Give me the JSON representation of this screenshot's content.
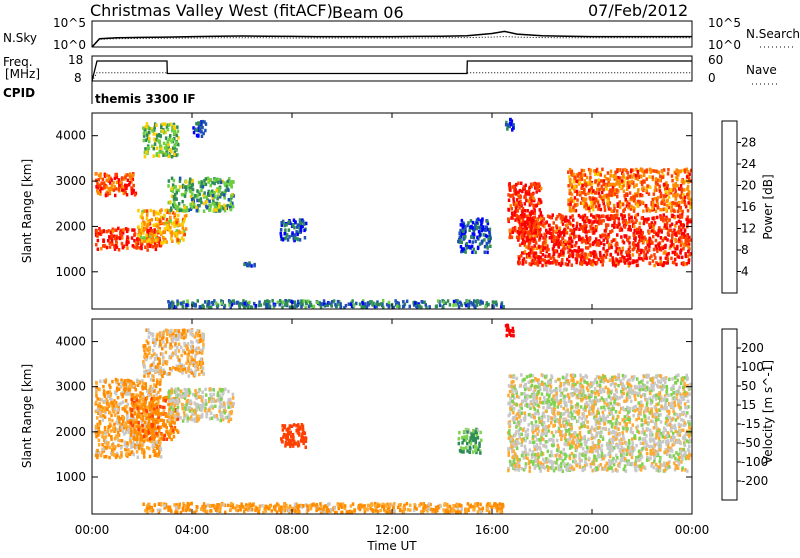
{
  "header": {
    "radar": "Christmas Valley West (fitACF)",
    "beam": "Beam 06",
    "date": "07/Feb/2012"
  },
  "nsky_panel": {
    "left_label": "N.Sky",
    "right_label": "N.Search",
    "left_ticks": [
      "10^5",
      "10^0"
    ],
    "right_ticks": [
      "10^5",
      "10^0"
    ]
  },
  "freq_panel": {
    "left_label_1": "Freq.",
    "left_label_2": "[MHz]",
    "cpid_label": "CPID",
    "right_label": "Nave",
    "left_ticks": [
      "18",
      "8"
    ],
    "right_ticks": [
      "60",
      "0"
    ],
    "cpid_text": "themis 3300 IF"
  },
  "x_axis": {
    "label": "Time UT",
    "ticks": [
      "00:00",
      "04:00",
      "08:00",
      "12:00",
      "16:00",
      "20:00",
      "00:00"
    ]
  },
  "chart_data": [
    {
      "type": "line",
      "name": "nsky-nsearch",
      "x": [
        0,
        0.3,
        1,
        2,
        3,
        4,
        5,
        6,
        7,
        8,
        9,
        10,
        11,
        12,
        13,
        14,
        15,
        16,
        16.5,
        17,
        18,
        19,
        20,
        21,
        22,
        23,
        24
      ],
      "series": [
        {
          "name": "N.Sky",
          "style": "solid",
          "values": [
            1,
            40,
            60,
            70,
            80,
            100,
            120,
            130,
            120,
            110,
            100,
            100,
            100,
            100,
            110,
            120,
            150,
            400,
            1000,
            300,
            150,
            120,
            100,
            100,
            100,
            100,
            100
          ]
        },
        {
          "name": "N.Search",
          "style": "dotted",
          "values": [
            1,
            30,
            40,
            45,
            50,
            55,
            60,
            60,
            60,
            55,
            55,
            55,
            55,
            55,
            55,
            60,
            65,
            80,
            100,
            80,
            65,
            60,
            60,
            60,
            60,
            60,
            60
          ]
        }
      ],
      "ylim": [
        1,
        100000
      ],
      "log": true
    },
    {
      "type": "line",
      "name": "freq-nave",
      "x": [
        0,
        0.2,
        3,
        3.01,
        15,
        15.01,
        24
      ],
      "series": [
        {
          "name": "Freq.",
          "style": "solid",
          "units": "MHz",
          "values": [
            8,
            16,
            16,
            11,
            11,
            16,
            16
          ]
        },
        {
          "name": "Nave",
          "style": "dotted",
          "values": [
            0,
            20,
            20,
            18,
            18,
            20,
            20
          ]
        }
      ],
      "ylim": [
        8,
        18
      ],
      "y2lim": [
        0,
        60
      ]
    },
    {
      "type": "heatmap",
      "name": "power",
      "ylabel": "Slant Range [km]",
      "yticks": [
        "1000",
        "2000",
        "3000",
        "4000"
      ],
      "ylim": [
        180,
        4500
      ],
      "xlim": [
        0,
        24
      ],
      "colorbar_label": "Power [dB]",
      "colorbar_ticks": [
        "28",
        "24",
        "20",
        "16",
        "12",
        "8",
        "4"
      ],
      "colorbar_colors": [
        "#0000ff",
        "#1e50b4",
        "#2e8b57",
        "#6ccf3f",
        "#ffcc00",
        "#ff8c00",
        "#ff4000",
        "#ff0000"
      ],
      "regions": [
        {
          "t": [
            0.1,
            2.8
          ],
          "r": [
            1450,
            2000
          ],
          "level": 28
        },
        {
          "t": [
            0.1,
            1.8
          ],
          "r": [
            2650,
            3200
          ],
          "level": 26
        },
        {
          "t": [
            1.8,
            3.8
          ],
          "r": [
            1600,
            2400
          ],
          "level": 20
        },
        {
          "t": [
            2.0,
            3.5
          ],
          "r": [
            3500,
            4300
          ],
          "level": 14
        },
        {
          "t": [
            3.0,
            5.7
          ],
          "r": [
            2300,
            3100
          ],
          "level": 12
        },
        {
          "t": [
            4.0,
            4.6
          ],
          "r": [
            3950,
            4350
          ],
          "level": 6
        },
        {
          "t": [
            6.0,
            6.6
          ],
          "r": [
            1100,
            1250
          ],
          "level": 6
        },
        {
          "t": [
            7.5,
            8.6
          ],
          "r": [
            1650,
            2200
          ],
          "level": 6
        },
        {
          "t": [
            14.6,
            16.0
          ],
          "r": [
            1400,
            2200
          ],
          "level": 5
        },
        {
          "t": [
            16.5,
            16.9
          ],
          "r": [
            4100,
            4400
          ],
          "level": 6
        },
        {
          "t": [
            16.6,
            18.0
          ],
          "r": [
            1700,
            3000
          ],
          "level": 28
        },
        {
          "t": [
            17.0,
            24.0
          ],
          "r": [
            1100,
            2300
          ],
          "level": 28
        },
        {
          "t": [
            19.0,
            24.0
          ],
          "r": [
            2300,
            3300
          ],
          "level": 24
        },
        {
          "t": [
            3.0,
            16.5
          ],
          "r": [
            180,
            400
          ],
          "level": 8
        }
      ]
    },
    {
      "type": "heatmap",
      "name": "velocity",
      "ylabel": "Slant Range [km]",
      "yticks": [
        "1000",
        "2000",
        "3000",
        "4000"
      ],
      "ylim": [
        180,
        4500
      ],
      "xlim": [
        0,
        24
      ],
      "colorbar_label": "Velocity [m s^-1]",
      "colorbar_ticks": [
        "200",
        "100",
        "50",
        "15",
        "-15",
        "-50",
        "-100",
        "-200"
      ],
      "colorbar_colors": [
        "#ff0000",
        "#ff4000",
        "#ff8c00",
        "#ffaa33",
        "#c8c8c8",
        "#7fd34e",
        "#2e8b57",
        "#1e50b4",
        "#0000cc"
      ],
      "regions": [
        {
          "t": [
            0.1,
            2.8
          ],
          "r": [
            1400,
            3200
          ],
          "value": -30
        },
        {
          "t": [
            1.5,
            3.5
          ],
          "r": [
            1800,
            2800
          ],
          "value": -60
        },
        {
          "t": [
            2.0,
            4.5
          ],
          "r": [
            3200,
            4300
          ],
          "value": -20
        },
        {
          "t": [
            3.0,
            5.7
          ],
          "r": [
            2200,
            3000
          ],
          "value": 0
        },
        {
          "t": [
            7.5,
            8.6
          ],
          "r": [
            1600,
            2200
          ],
          "value": -120
        },
        {
          "t": [
            14.6,
            15.6
          ],
          "r": [
            1500,
            2100
          ],
          "value": 40
        },
        {
          "t": [
            16.5,
            16.9
          ],
          "r": [
            4100,
            4400
          ],
          "value": -200
        },
        {
          "t": [
            16.6,
            24.0
          ],
          "r": [
            1100,
            3300
          ],
          "value": 0
        },
        {
          "t": [
            2.0,
            16.5
          ],
          "r": [
            180,
            450
          ],
          "value": -40
        }
      ]
    }
  ]
}
